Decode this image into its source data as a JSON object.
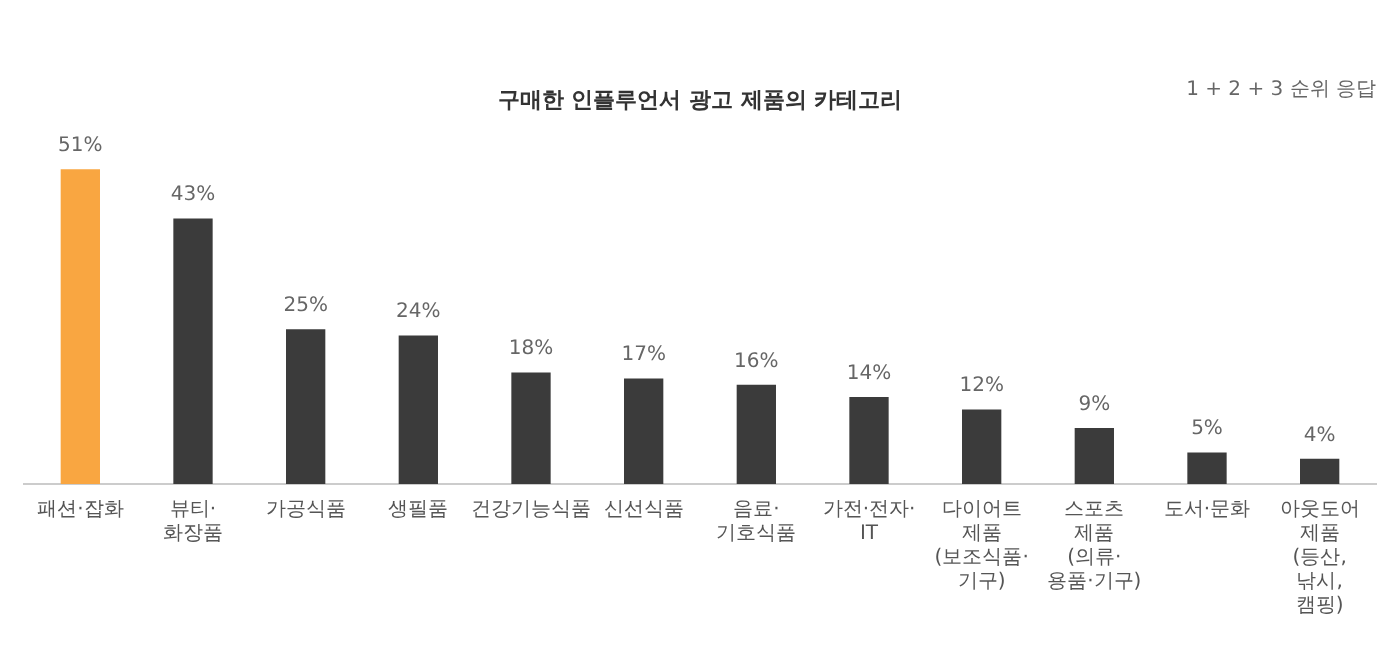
{
  "chart_data": {
    "type": "bar",
    "title": "구매한 인플루언서 광고 제품의 카테고리",
    "annotations": [
      "1 + 2 + 3 순위 응답"
    ],
    "categories": [
      "패션·잡화",
      "뷰티·화장품",
      "가공식품",
      "생필품",
      "건강기능식품",
      "신선식품",
      "음료·기호식품",
      "가전·전자·IT",
      "다이어트 제품\n(보조식품·기구)",
      "스포츠 제품\n(의류·용품·기구)",
      "도서·문화",
      "아웃도어 제품\n(등산, 낚시, 캠핑)"
    ],
    "values": [
      51,
      43,
      25,
      24,
      18,
      17,
      16,
      14,
      12,
      9,
      5,
      4
    ],
    "value_labels": [
      "51%",
      "43%",
      "25%",
      "24%",
      "18%",
      "17%",
      "16%",
      "14%",
      "12%",
      "9%",
      "5%",
      "4%"
    ],
    "colors": [
      "#f9a641",
      "#3b3b3b",
      "#3b3b3b",
      "#3b3b3b",
      "#3b3b3b",
      "#3b3b3b",
      "#3b3b3b",
      "#3b3b3b",
      "#3b3b3b",
      "#3b3b3b",
      "#3b3b3b",
      "#3b3b3b"
    ],
    "tick_labels": "x",
    "grid": false,
    "legend": false
  }
}
